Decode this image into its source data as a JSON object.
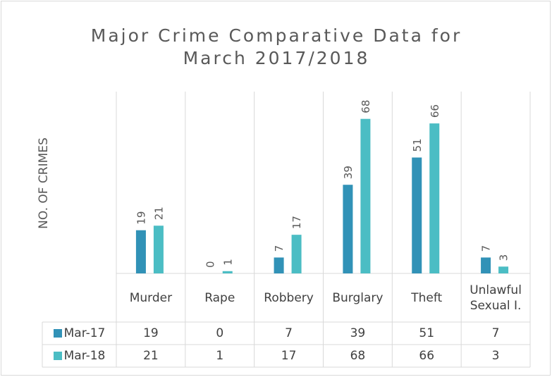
{
  "chart_data": {
    "type": "bar",
    "title": "Major Crime Comparative Data for March 2017/2018",
    "y_label": "NO. OF CRIMES",
    "categories": [
      "Murder",
      "Rape",
      "Robbery",
      "Burglary",
      "Theft",
      "Unlawful Sexual I."
    ],
    "series": [
      {
        "name": "Mar-17",
        "color": "#3192b7",
        "values": [
          19,
          0,
          7,
          39,
          51,
          7
        ]
      },
      {
        "name": "Mar-18",
        "color": "#4bbdc4",
        "values": [
          21,
          1,
          17,
          68,
          66,
          3
        ]
      }
    ],
    "ylim": [
      0,
      80
    ],
    "data_table": true
  }
}
